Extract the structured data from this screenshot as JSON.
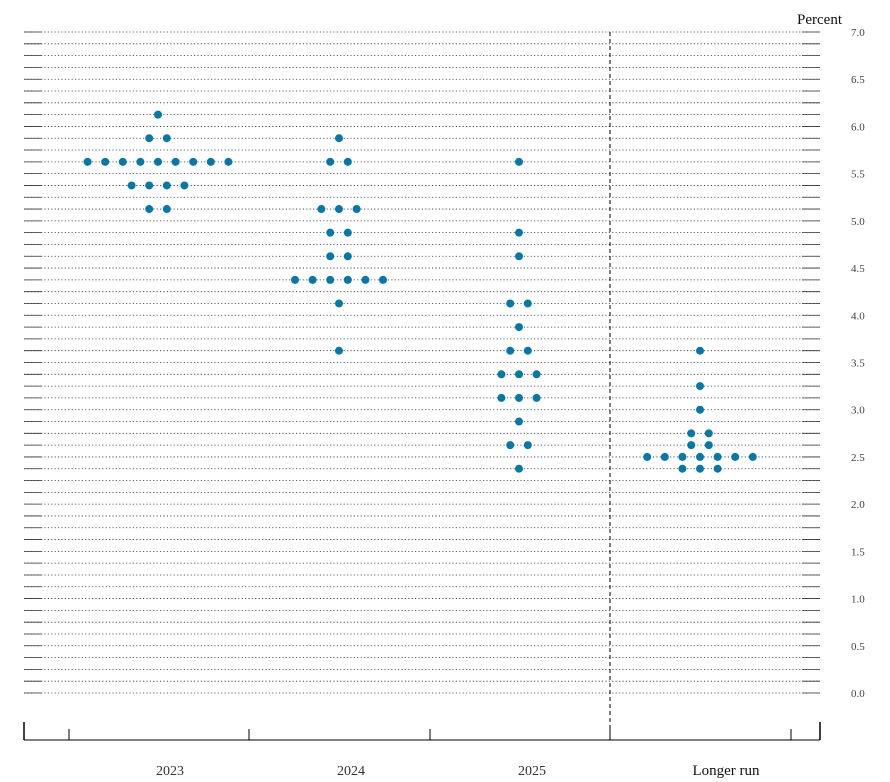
{
  "chart_data": {
    "type": "scatter",
    "unit_label": "Percent",
    "categories": [
      "2023",
      "2024",
      "2025",
      "Longer run"
    ],
    "ylim": [
      0,
      7
    ],
    "y_ticks": [
      "0.0",
      "0.5",
      "1.0",
      "1.5",
      "2.0",
      "2.5",
      "3.0",
      "3.5",
      "4.0",
      "4.5",
      "5.0",
      "5.5",
      "6.0",
      "6.5",
      "7.0"
    ],
    "grid": "dotted horizontal lines every 0.125",
    "point_color": "#0a76a4",
    "points": [
      {
        "category": "2023",
        "y": 6.125,
        "count": 1
      },
      {
        "category": "2023",
        "y": 5.875,
        "count": 2
      },
      {
        "category": "2023",
        "y": 5.625,
        "count": 9
      },
      {
        "category": "2023",
        "y": 5.375,
        "count": 4
      },
      {
        "category": "2023",
        "y": 5.125,
        "count": 2
      },
      {
        "category": "2024",
        "y": 5.875,
        "count": 1
      },
      {
        "category": "2024",
        "y": 5.625,
        "count": 2
      },
      {
        "category": "2024",
        "y": 5.125,
        "count": 3
      },
      {
        "category": "2024",
        "y": 4.875,
        "count": 2
      },
      {
        "category": "2024",
        "y": 4.625,
        "count": 2
      },
      {
        "category": "2024",
        "y": 4.375,
        "count": 6
      },
      {
        "category": "2024",
        "y": 4.125,
        "count": 1
      },
      {
        "category": "2024",
        "y": 3.625,
        "count": 1
      },
      {
        "category": "2025",
        "y": 5.625,
        "count": 1
      },
      {
        "category": "2025",
        "y": 4.875,
        "count": 1
      },
      {
        "category": "2025",
        "y": 4.625,
        "count": 1
      },
      {
        "category": "2025",
        "y": 4.125,
        "count": 2
      },
      {
        "category": "2025",
        "y": 3.875,
        "count": 1
      },
      {
        "category": "2025",
        "y": 3.625,
        "count": 2
      },
      {
        "category": "2025",
        "y": 3.375,
        "count": 3
      },
      {
        "category": "2025",
        "y": 3.125,
        "count": 3
      },
      {
        "category": "2025",
        "y": 2.875,
        "count": 1
      },
      {
        "category": "2025",
        "y": 2.625,
        "count": 2
      },
      {
        "category": "2025",
        "y": 2.375,
        "count": 1
      },
      {
        "category": "Longer run",
        "y": 3.625,
        "count": 1
      },
      {
        "category": "Longer run",
        "y": 3.25,
        "count": 1
      },
      {
        "category": "Longer run",
        "y": 3.0,
        "count": 1
      },
      {
        "category": "Longer run",
        "y": 2.75,
        "count": 2
      },
      {
        "category": "Longer run",
        "y": 2.625,
        "count": 2
      },
      {
        "category": "Longer run",
        "y": 2.5,
        "count": 7
      },
      {
        "category": "Longer run",
        "y": 2.375,
        "count": 3
      }
    ]
  }
}
